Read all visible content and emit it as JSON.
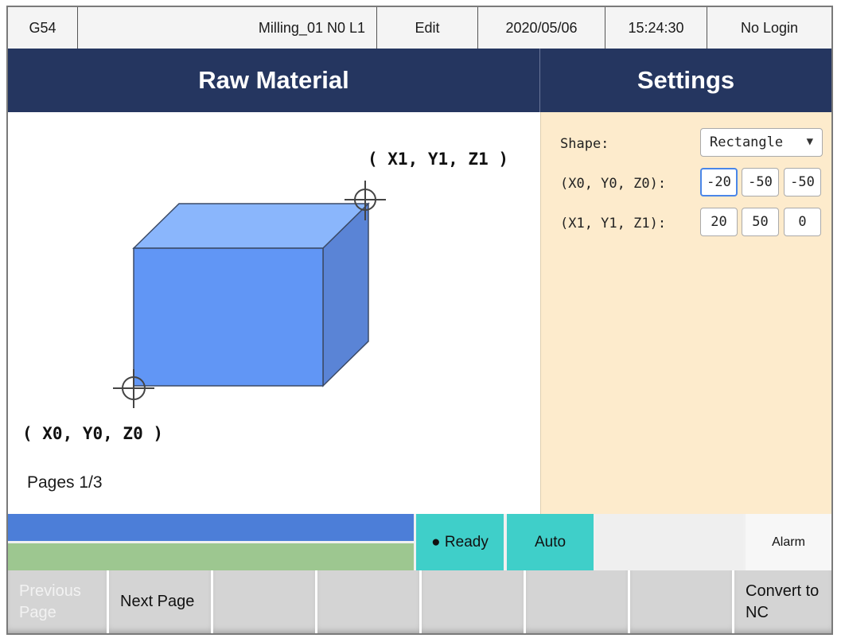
{
  "status_bar": {
    "coord_system": "G54",
    "program": "Milling_01 N0 L1",
    "mode": "Edit",
    "date": "2020/05/06",
    "time": "15:24:30",
    "login": "No Login"
  },
  "header": {
    "left_title": "Raw Material",
    "right_title": "Settings"
  },
  "diagram": {
    "corner_top_label": "( X1, Y1, Z1 )",
    "corner_bottom_label": "( X0, Y0, Z0 )",
    "box_colors": {
      "front": "#6196f5",
      "top": "#8ab6fc",
      "side": "#5a84d6"
    }
  },
  "pages_text": "Pages 1/3",
  "settings": {
    "shape_label": "Shape:",
    "shape_value": "Rectangle",
    "p0_label": "(X0, Y0, Z0):",
    "p0_values": [
      "-20",
      "-50",
      "-50"
    ],
    "p1_label": "(X1, Y1, Z1):",
    "p1_values": [
      "20",
      "50",
      "0"
    ]
  },
  "status_row": {
    "ready": "● Ready",
    "auto": "Auto",
    "alarm": "Alarm"
  },
  "softkeys": [
    "Previous Page",
    "Next Page",
    "",
    "",
    "",
    "",
    "",
    "Convert to NC"
  ],
  "colors": {
    "header": "#253660",
    "settings_bg": "#fdebcc",
    "teal": "#3fcfc9",
    "bar_blue": "#4c7ed8",
    "bar_green": "#9dc790"
  }
}
